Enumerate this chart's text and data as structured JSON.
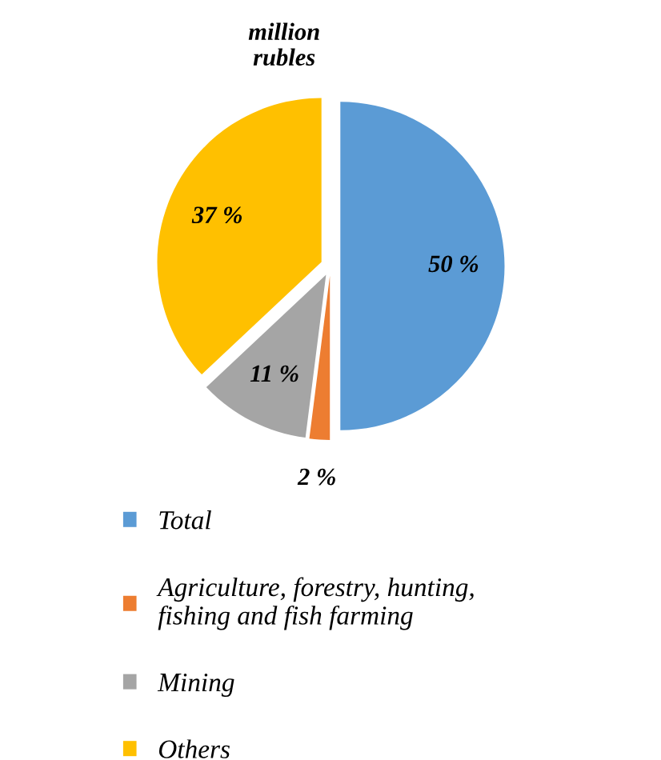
{
  "chart_data": {
    "type": "pie",
    "title": "million\nrubles",
    "categories": [
      "Total",
      "Agriculture, forestry, hunting,\nfishing and fish farming",
      "Mining",
      "Others"
    ],
    "values": [
      50,
      2,
      11,
      37
    ],
    "colors": [
      "#5b9bd5",
      "#ed7d31",
      "#a5a5a5",
      "#ffc000"
    ],
    "value_labels": [
      "50 %",
      "2 %",
      "11 %",
      "37 %"
    ],
    "legend": "bottom"
  }
}
